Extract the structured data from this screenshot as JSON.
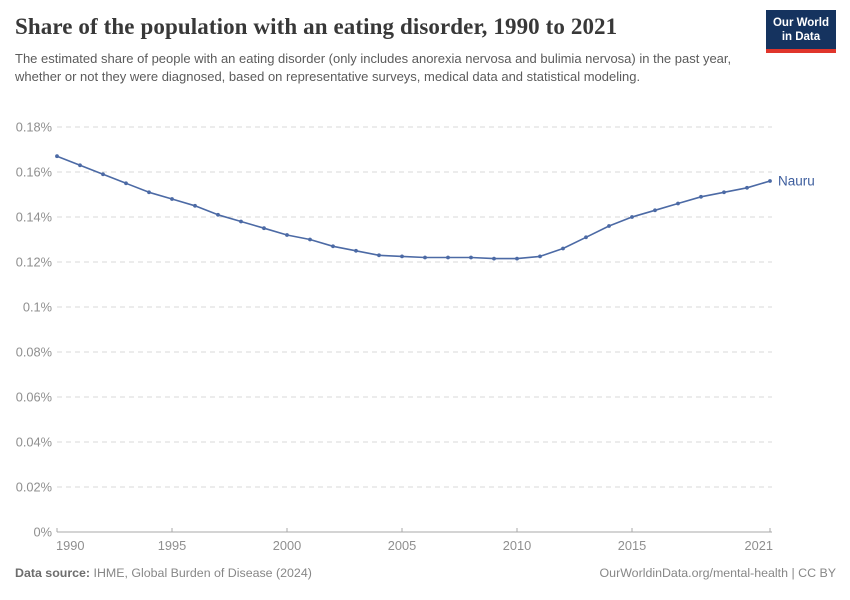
{
  "header": {
    "title": "Share of the population with an eating disorder, 1990 to 2021",
    "subtitle": "The estimated share of people with an eating disorder (only includes anorexia nervosa and bulimia nervosa) in the past year, whether or not they were diagnosed, based on representative surveys, medical data and statistical modeling.",
    "logo": {
      "line1": "Our World",
      "line2": "in Data",
      "bg_color": "#15335f",
      "accent_color": "#e0352b"
    }
  },
  "chart_data": {
    "type": "line",
    "title": "Share of the population with an eating disorder, 1990 to 2021",
    "xlabel": "",
    "ylabel": "",
    "xlim": [
      1990,
      2021
    ],
    "ylim": [
      0,
      0.18
    ],
    "grid": "horizontal-dashed",
    "legend_position": "end-of-line-label",
    "x": [
      1990,
      1991,
      1992,
      1993,
      1994,
      1995,
      1996,
      1997,
      1998,
      1999,
      2000,
      2001,
      2002,
      2003,
      2004,
      2005,
      2006,
      2007,
      2008,
      2009,
      2010,
      2011,
      2012,
      2013,
      2014,
      2015,
      2016,
      2017,
      2018,
      2019,
      2020,
      2021
    ],
    "series": [
      {
        "name": "Nauru",
        "color": "#4c6aa5",
        "values": [
          0.167,
          0.163,
          0.159,
          0.155,
          0.151,
          0.148,
          0.145,
          0.141,
          0.138,
          0.135,
          0.132,
          0.13,
          0.127,
          0.125,
          0.123,
          0.1225,
          0.122,
          0.122,
          0.122,
          0.1215,
          0.1215,
          0.1225,
          0.126,
          0.131,
          0.136,
          0.14,
          0.143,
          0.146,
          0.149,
          0.151,
          0.153,
          0.156
        ]
      }
    ],
    "y_ticks": [
      {
        "value": 0,
        "label": "0%"
      },
      {
        "value": 0.02,
        "label": "0.02%"
      },
      {
        "value": 0.04,
        "label": "0.04%"
      },
      {
        "value": 0.06,
        "label": "0.06%"
      },
      {
        "value": 0.08,
        "label": "0.08%"
      },
      {
        "value": 0.1,
        "label": "0.1%"
      },
      {
        "value": 0.12,
        "label": "0.12%"
      },
      {
        "value": 0.14,
        "label": "0.14%"
      },
      {
        "value": 0.16,
        "label": "0.16%"
      },
      {
        "value": 0.18,
        "label": "0.18%"
      }
    ],
    "x_ticks": [
      {
        "value": 1990,
        "label": "1990"
      },
      {
        "value": 1995,
        "label": "1995"
      },
      {
        "value": 2000,
        "label": "2000"
      },
      {
        "value": 2005,
        "label": "2005"
      },
      {
        "value": 2010,
        "label": "2010"
      },
      {
        "value": 2015,
        "label": "2015"
      },
      {
        "value": 2021,
        "label": "2021"
      }
    ],
    "colors": {
      "grid": "#d9d9d9",
      "axis": "#a8a8a8",
      "tick_text": "#8f8f8f",
      "end_label": "#3e5e9e"
    }
  },
  "footer": {
    "source_label": "Data source:",
    "source_value": "IHME, Global Burden of Disease (2024)",
    "credit": "OurWorldinData.org/mental-health | CC BY"
  }
}
